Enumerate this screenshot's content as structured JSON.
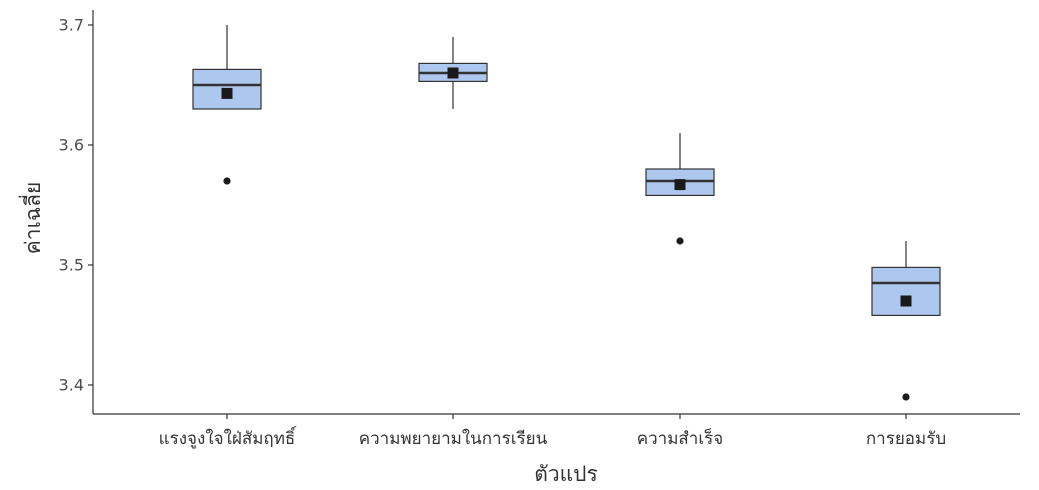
{
  "chart_data": {
    "type": "boxplot",
    "xlabel": "ตัวแปร",
    "ylabel": "ค่าเฉลี่ย",
    "ylim": [
      3.375,
      3.705
    ],
    "yticks": [
      3.4,
      3.5,
      3.6,
      3.7
    ],
    "ytick_labels": [
      "3.4",
      "3.5",
      "3.6",
      "3.7"
    ],
    "grid": false,
    "fill_color": "#aec7ef",
    "stroke_color": "#333333",
    "categories": [
      "แรงจูงใจใฝ่สัมฤทธิ์",
      "ความพยายามในการเรียน",
      "ความสำเร็จ",
      "การยอมรับ"
    ],
    "boxes": [
      {
        "category": "แรงจูงใจใฝ่สัมฤทธิ์",
        "whisker_low": 3.63,
        "q1": 3.63,
        "median": 3.65,
        "q3": 3.663,
        "whisker_high": 3.7,
        "mean": 3.643,
        "outliers": [
          3.57
        ]
      },
      {
        "category": "ความพยายามในการเรียน",
        "whisker_low": 3.63,
        "q1": 3.653,
        "median": 3.66,
        "q3": 3.668,
        "whisker_high": 3.69,
        "mean": 3.66,
        "outliers": []
      },
      {
        "category": "ความสำเร็จ",
        "whisker_low": 3.558,
        "q1": 3.558,
        "median": 3.57,
        "q3": 3.58,
        "whisker_high": 3.61,
        "mean": 3.567,
        "outliers": [
          3.52
        ]
      },
      {
        "category": "การยอมรับ",
        "whisker_low": 3.458,
        "q1": 3.458,
        "median": 3.485,
        "q3": 3.498,
        "whisker_high": 3.52,
        "mean": 3.47,
        "outliers": [
          3.39
        ]
      }
    ]
  }
}
